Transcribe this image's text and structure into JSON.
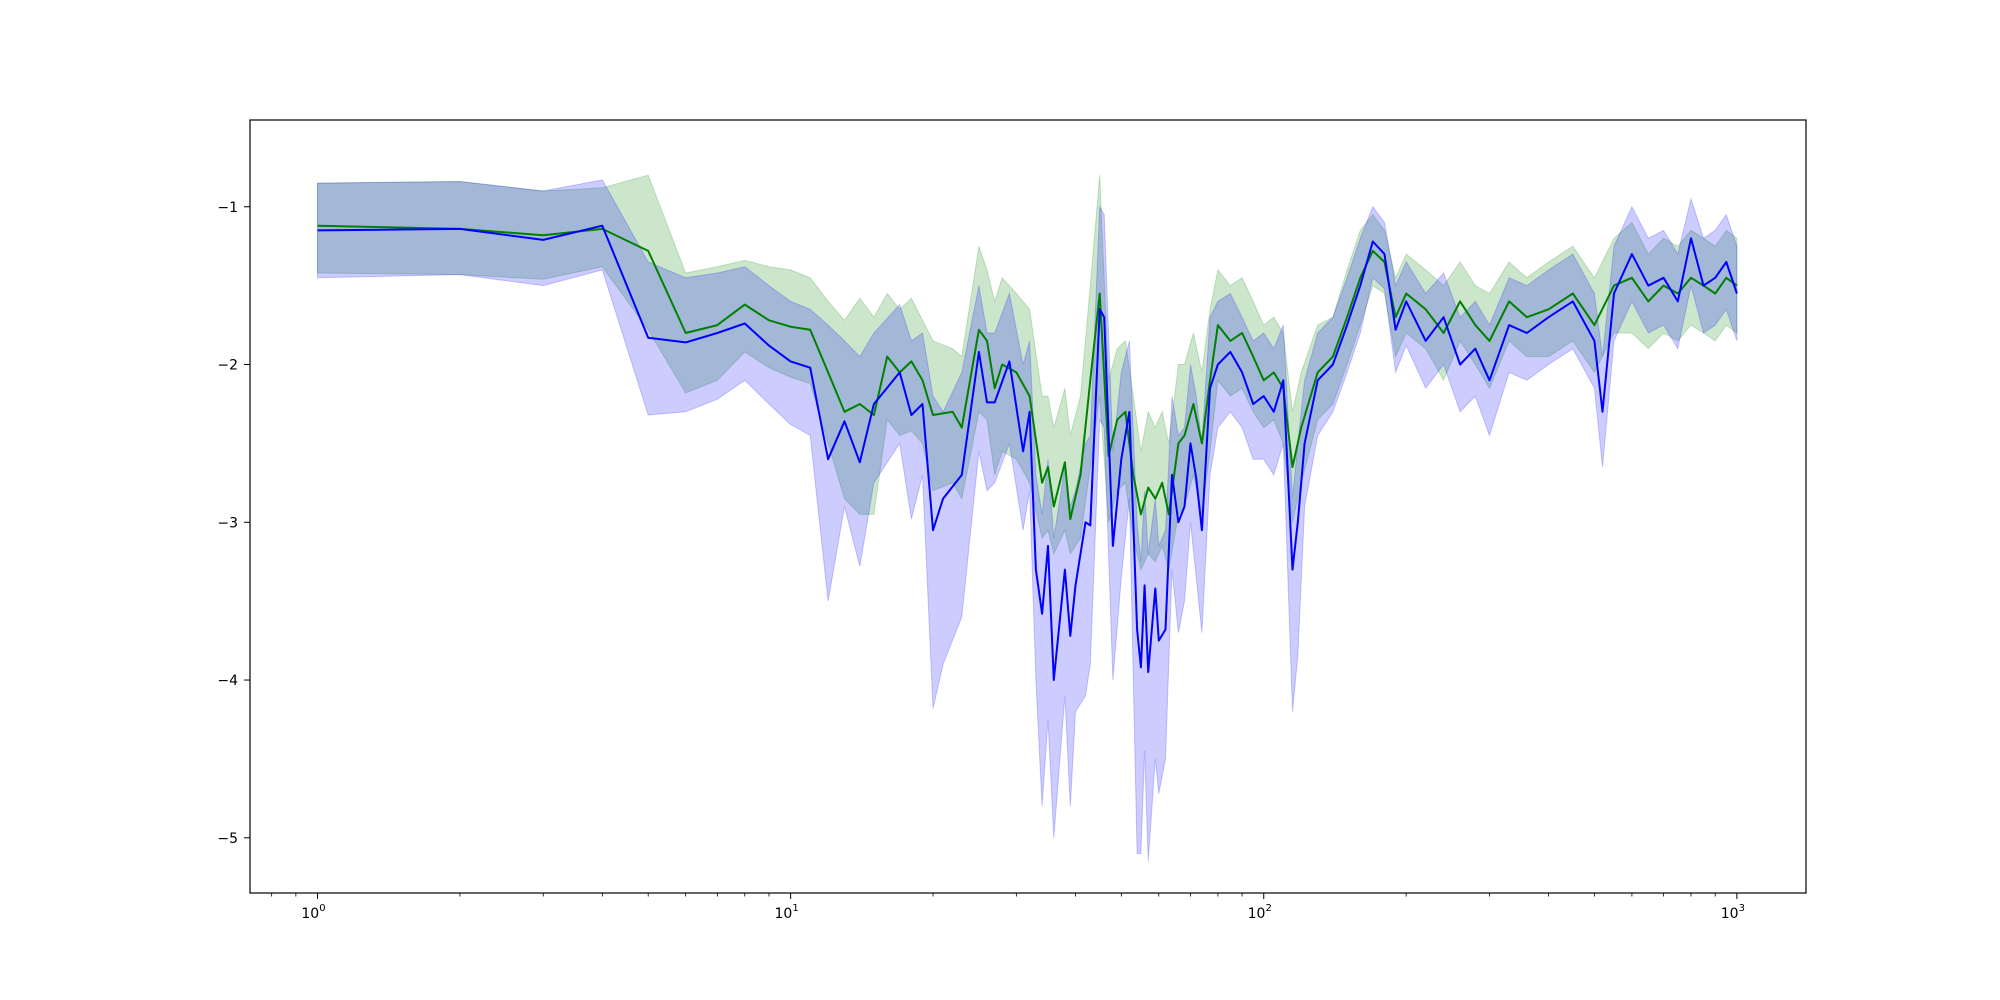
{
  "chart_data": {
    "type": "line",
    "title": "",
    "xlabel": "",
    "ylabel": "",
    "xscale": "log",
    "xlim": [
      0.72,
      1400
    ],
    "ylim": [
      -5.35,
      -0.45
    ],
    "grid": false,
    "legend": "none",
    "x_ticks": [
      {
        "value": 1,
        "base": "10",
        "exp": "0"
      },
      {
        "value": 10,
        "base": "10",
        "exp": "1"
      },
      {
        "value": 100,
        "base": "10",
        "exp": "2"
      },
      {
        "value": 1000,
        "base": "10",
        "exp": "3"
      }
    ],
    "y_ticks": [
      {
        "value": -1,
        "label": "−1"
      },
      {
        "value": -2,
        "label": "−2"
      },
      {
        "value": -3,
        "label": "−3"
      },
      {
        "value": -4,
        "label": "−4"
      },
      {
        "value": -5,
        "label": "−5"
      }
    ],
    "series": [
      {
        "color": "#008000",
        "band_color": "#008000",
        "band_opacity": 0.2,
        "points": [
          [
            1,
            -1.12,
            -0.85,
            -1.42
          ],
          [
            2,
            -1.14,
            -0.84,
            -1.43
          ],
          [
            3,
            -1.18,
            -0.9,
            -1.46
          ],
          [
            4,
            -1.14,
            -0.88,
            -1.38
          ],
          [
            5,
            -1.28,
            -0.8,
            -1.78
          ],
          [
            6,
            -1.8,
            -1.42,
            -2.18
          ],
          [
            7,
            -1.75,
            -1.38,
            -2.1
          ],
          [
            8,
            -1.62,
            -1.34,
            -1.92
          ],
          [
            9,
            -1.72,
            -1.38,
            -2.02
          ],
          [
            10,
            -1.76,
            -1.4,
            -2.08
          ],
          [
            11,
            -1.78,
            -1.45,
            -2.12
          ],
          [
            12,
            -2.05,
            -1.6,
            -2.5
          ],
          [
            13,
            -2.3,
            -1.72,
            -2.85
          ],
          [
            14,
            -2.25,
            -1.58,
            -2.95
          ],
          [
            15,
            -2.32,
            -1.7,
            -2.95
          ],
          [
            16,
            -1.95,
            -1.55,
            -2.35
          ],
          [
            17,
            -2.05,
            -1.65,
            -2.45
          ],
          [
            18,
            -1.98,
            -1.58,
            -2.42
          ],
          [
            19,
            -2.1,
            -1.72,
            -2.5
          ],
          [
            20,
            -2.32,
            -1.85,
            -2.8
          ],
          [
            22,
            -2.3,
            -1.9,
            -2.75
          ],
          [
            23,
            -2.4,
            -1.95,
            -2.85
          ],
          [
            25,
            -1.78,
            -1.25,
            -2.3
          ],
          [
            26,
            -1.85,
            -1.4,
            -2.35
          ],
          [
            27,
            -2.15,
            -1.6,
            -2.7
          ],
          [
            28,
            -2.0,
            -1.45,
            -2.55
          ],
          [
            30,
            -2.05,
            -1.55,
            -2.6
          ],
          [
            32,
            -2.2,
            -1.65,
            -2.75
          ],
          [
            34,
            -2.75,
            -2.2,
            -3.1
          ],
          [
            35,
            -2.65,
            -2.2,
            -3.05
          ],
          [
            36,
            -2.9,
            -2.4,
            -3.2
          ],
          [
            38,
            -2.62,
            -2.15,
            -3.05
          ],
          [
            39,
            -2.98,
            -2.45,
            -3.2
          ],
          [
            41,
            -2.7,
            -2.2,
            -3.1
          ],
          [
            43,
            -2.1,
            -1.5,
            -2.65
          ],
          [
            45,
            -1.55,
            -0.8,
            -2.2
          ],
          [
            47,
            -2.58,
            -2.1,
            -3.0
          ],
          [
            49,
            -2.35,
            -1.9,
            -2.8
          ],
          [
            51,
            -2.3,
            -1.85,
            -2.75
          ],
          [
            53,
            -2.7,
            -2.2,
            -3.1
          ],
          [
            55,
            -2.95,
            -2.55,
            -3.3
          ],
          [
            57,
            -2.78,
            -2.3,
            -3.2
          ],
          [
            59,
            -2.85,
            -2.4,
            -3.25
          ],
          [
            61,
            -2.75,
            -2.3,
            -3.15
          ],
          [
            63,
            -2.95,
            -2.5,
            -3.3
          ],
          [
            66,
            -2.5,
            -2.0,
            -2.95
          ],
          [
            68,
            -2.45,
            -2.0,
            -2.9
          ],
          [
            71,
            -2.25,
            -1.8,
            -2.7
          ],
          [
            74,
            -2.5,
            -2.05,
            -2.95
          ],
          [
            77,
            -2.1,
            -1.65,
            -2.55
          ],
          [
            80,
            -1.75,
            -1.4,
            -2.1
          ],
          [
            85,
            -1.85,
            -1.5,
            -2.2
          ],
          [
            90,
            -1.8,
            -1.45,
            -2.15
          ],
          [
            95,
            -1.95,
            -1.6,
            -2.3
          ],
          [
            100,
            -2.1,
            -1.75,
            -2.4
          ],
          [
            105,
            -2.05,
            -1.7,
            -2.35
          ],
          [
            110,
            -2.15,
            -1.8,
            -2.5
          ],
          [
            115,
            -2.65,
            -2.3,
            -3.0
          ],
          [
            120,
            -2.4,
            -2.05,
            -2.75
          ],
          [
            130,
            -2.05,
            -1.75,
            -2.35
          ],
          [
            140,
            -1.95,
            -1.7,
            -2.25
          ],
          [
            150,
            -1.7,
            -1.4,
            -2.0
          ],
          [
            160,
            -1.45,
            -1.15,
            -1.75
          ],
          [
            170,
            -1.28,
            -1.05,
            -1.5
          ],
          [
            180,
            -1.35,
            -1.15,
            -1.55
          ],
          [
            190,
            -1.7,
            -1.45,
            -1.95
          ],
          [
            200,
            -1.55,
            -1.3,
            -1.8
          ],
          [
            220,
            -1.65,
            -1.4,
            -1.9
          ],
          [
            240,
            -1.8,
            -1.5,
            -2.1
          ],
          [
            260,
            -1.6,
            -1.35,
            -1.85
          ],
          [
            280,
            -1.75,
            -1.5,
            -2.0
          ],
          [
            300,
            -1.85,
            -1.55,
            -2.15
          ],
          [
            330,
            -1.6,
            -1.35,
            -1.85
          ],
          [
            360,
            -1.7,
            -1.45,
            -1.95
          ],
          [
            400,
            -1.65,
            -1.35,
            -1.95
          ],
          [
            450,
            -1.55,
            -1.25,
            -1.85
          ],
          [
            500,
            -1.75,
            -1.45,
            -2.05
          ],
          [
            550,
            -1.5,
            -1.2,
            -1.8
          ],
          [
            600,
            -1.45,
            -1.1,
            -1.8
          ],
          [
            650,
            -1.6,
            -1.3,
            -1.9
          ],
          [
            700,
            -1.5,
            -1.2,
            -1.8
          ],
          [
            750,
            -1.55,
            -1.25,
            -1.85
          ],
          [
            800,
            -1.45,
            -1.15,
            -1.75
          ],
          [
            850,
            -1.5,
            -1.2,
            -1.8
          ],
          [
            900,
            -1.55,
            -1.25,
            -1.85
          ],
          [
            950,
            -1.45,
            -1.15,
            -1.75
          ],
          [
            1000,
            -1.5,
            -1.2,
            -1.8
          ]
        ]
      },
      {
        "color": "#0000ff",
        "band_color": "#0000ff",
        "band_opacity": 0.2,
        "points": [
          [
            1,
            -1.15,
            -0.85,
            -1.45
          ],
          [
            2,
            -1.14,
            -0.84,
            -1.43
          ],
          [
            3,
            -1.21,
            -0.9,
            -1.5
          ],
          [
            4,
            -1.12,
            -0.83,
            -1.4
          ],
          [
            5,
            -1.83,
            -1.35,
            -2.32
          ],
          [
            6,
            -1.86,
            -1.45,
            -2.3
          ],
          [
            7,
            -1.8,
            -1.42,
            -2.22
          ],
          [
            8,
            -1.74,
            -1.38,
            -2.1
          ],
          [
            9,
            -1.88,
            -1.5,
            -2.25
          ],
          [
            10,
            -1.98,
            -1.6,
            -2.38
          ],
          [
            11,
            -2.02,
            -1.65,
            -2.45
          ],
          [
            12,
            -2.6,
            -1.75,
            -3.5
          ],
          [
            13,
            -2.36,
            -1.85,
            -2.9
          ],
          [
            14,
            -2.62,
            -1.95,
            -3.28
          ],
          [
            15,
            -2.25,
            -1.8,
            -2.75
          ],
          [
            17,
            -2.05,
            -1.62,
            -2.5
          ],
          [
            18,
            -2.32,
            -1.85,
            -2.98
          ],
          [
            19,
            -2.25,
            -1.8,
            -2.7
          ],
          [
            20,
            -3.05,
            -2.2,
            -4.18
          ],
          [
            21,
            -2.85,
            -2.3,
            -3.9
          ],
          [
            23,
            -2.7,
            -2.05,
            -3.6
          ],
          [
            25,
            -1.92,
            -1.5,
            -2.55
          ],
          [
            26,
            -2.24,
            -1.8,
            -2.8
          ],
          [
            27,
            -2.24,
            -1.8,
            -2.75
          ],
          [
            29,
            -1.98,
            -1.55,
            -2.5
          ],
          [
            31,
            -2.55,
            -2.0,
            -3.05
          ],
          [
            32,
            -2.3,
            -1.85,
            -2.8
          ],
          [
            33,
            -3.3,
            -2.7,
            -4.0
          ],
          [
            34,
            -3.58,
            -2.95,
            -4.8
          ],
          [
            35,
            -3.15,
            -2.6,
            -4.25
          ],
          [
            36,
            -4.0,
            -3.1,
            -5.0
          ],
          [
            38,
            -3.3,
            -2.65,
            -4.1
          ],
          [
            39,
            -3.72,
            -2.9,
            -4.8
          ],
          [
            40,
            -3.4,
            -2.8,
            -4.2
          ],
          [
            42,
            -3.0,
            -2.5,
            -4.1
          ],
          [
            43,
            -3.02,
            -2.45,
            -3.9
          ],
          [
            45,
            -1.65,
            -1.0,
            -2.35
          ],
          [
            46,
            -1.7,
            -1.05,
            -2.4
          ],
          [
            48,
            -3.15,
            -2.55,
            -4.0
          ],
          [
            50,
            -2.6,
            -2.05,
            -3.35
          ],
          [
            52,
            -2.3,
            -1.85,
            -2.85
          ],
          [
            54,
            -3.68,
            -3.0,
            -5.1
          ],
          [
            55,
            -3.92,
            -3.25,
            -5.1
          ],
          [
            56,
            -3.4,
            -2.8,
            -4.45
          ],
          [
            57,
            -3.95,
            -3.2,
            -5.15
          ],
          [
            59,
            -3.42,
            -2.85,
            -4.5
          ],
          [
            60,
            -3.75,
            -3.15,
            -4.72
          ],
          [
            62,
            -3.68,
            -3.05,
            -4.5
          ],
          [
            64,
            -2.7,
            -2.2,
            -3.3
          ],
          [
            66,
            -3.0,
            -2.45,
            -3.7
          ],
          [
            68,
            -2.9,
            -2.4,
            -3.5
          ],
          [
            70,
            -2.5,
            -2.0,
            -3.0
          ],
          [
            72,
            -2.72,
            -2.2,
            -3.35
          ],
          [
            74,
            -3.05,
            -2.5,
            -3.7
          ],
          [
            77,
            -2.15,
            -1.7,
            -2.7
          ],
          [
            80,
            -2.0,
            -1.6,
            -2.4
          ],
          [
            85,
            -1.92,
            -1.55,
            -2.3
          ],
          [
            90,
            -2.05,
            -1.7,
            -2.4
          ],
          [
            95,
            -2.25,
            -1.85,
            -2.6
          ],
          [
            100,
            -2.2,
            -1.8,
            -2.6
          ],
          [
            105,
            -2.3,
            -1.9,
            -2.7
          ],
          [
            110,
            -2.1,
            -1.75,
            -2.5
          ],
          [
            115,
            -3.3,
            -2.85,
            -4.2
          ],
          [
            118,
            -3.0,
            -2.5,
            -3.85
          ],
          [
            122,
            -2.5,
            -2.1,
            -2.9
          ],
          [
            130,
            -2.1,
            -1.8,
            -2.45
          ],
          [
            140,
            -2.0,
            -1.7,
            -2.3
          ],
          [
            150,
            -1.75,
            -1.45,
            -2.05
          ],
          [
            160,
            -1.5,
            -1.2,
            -1.8
          ],
          [
            170,
            -1.22,
            -1.0,
            -1.45
          ],
          [
            180,
            -1.3,
            -1.1,
            -1.52
          ],
          [
            190,
            -1.78,
            -1.5,
            -2.05
          ],
          [
            200,
            -1.6,
            -1.35,
            -1.88
          ],
          [
            220,
            -1.85,
            -1.55,
            -2.15
          ],
          [
            240,
            -1.7,
            -1.42,
            -2.0
          ],
          [
            260,
            -2.0,
            -1.7,
            -2.3
          ],
          [
            280,
            -1.9,
            -1.6,
            -2.2
          ],
          [
            300,
            -2.1,
            -1.75,
            -2.45
          ],
          [
            330,
            -1.75,
            -1.45,
            -2.05
          ],
          [
            360,
            -1.8,
            -1.5,
            -2.1
          ],
          [
            400,
            -1.7,
            -1.4,
            -2.0
          ],
          [
            450,
            -1.6,
            -1.3,
            -1.9
          ],
          [
            500,
            -1.85,
            -1.55,
            -2.15
          ],
          [
            520,
            -2.3,
            -1.95,
            -2.65
          ],
          [
            550,
            -1.55,
            -1.25,
            -1.85
          ],
          [
            600,
            -1.3,
            -1.0,
            -1.6
          ],
          [
            650,
            -1.5,
            -1.2,
            -1.8
          ],
          [
            700,
            -1.45,
            -1.15,
            -1.75
          ],
          [
            750,
            -1.6,
            -1.3,
            -1.9
          ],
          [
            800,
            -1.2,
            -0.95,
            -1.5
          ],
          [
            850,
            -1.5,
            -1.2,
            -1.8
          ],
          [
            900,
            -1.45,
            -1.15,
            -1.75
          ],
          [
            950,
            -1.35,
            -1.05,
            -1.65
          ],
          [
            1000,
            -1.55,
            -1.25,
            -1.85
          ]
        ]
      }
    ]
  }
}
